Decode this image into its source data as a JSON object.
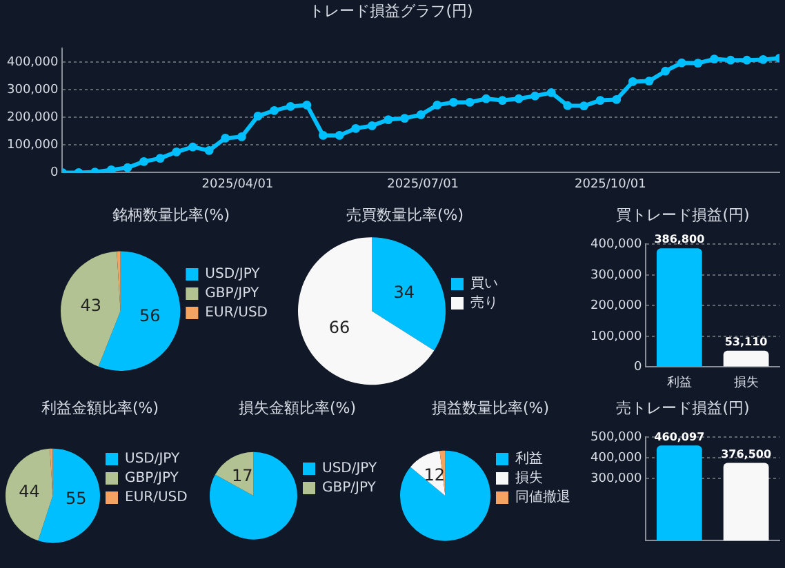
{
  "chart_data": [
    {
      "type": "line",
      "title": "トレード損益グラフ(円)",
      "x": [
        "2025-01-05",
        "2025-01-13",
        "2025-01-21",
        "2025-01-29",
        "2025-02-06",
        "2025-02-14",
        "2025-02-22",
        "2025-03-02",
        "2025-03-10",
        "2025-03-18",
        "2025-03-26",
        "2025-04-03",
        "2025-04-11",
        "2025-04-19",
        "2025-04-27",
        "2025-05-05",
        "2025-05-13",
        "2025-05-21",
        "2025-05-29",
        "2025-06-06",
        "2025-06-14",
        "2025-06-22",
        "2025-06-30",
        "2025-07-08",
        "2025-07-16",
        "2025-07-24",
        "2025-08-01",
        "2025-08-09",
        "2025-08-17",
        "2025-08-25",
        "2025-09-02",
        "2025-09-10",
        "2025-09-18",
        "2025-09-26",
        "2025-10-04",
        "2025-10-12",
        "2025-10-20",
        "2025-10-28",
        "2025-11-05",
        "2025-11-13",
        "2025-11-21",
        "2025-11-29",
        "2025-12-07",
        "2025-12-15",
        "2025-12-23"
      ],
      "series": [
        {
          "color": "#00bfff",
          "values": [
            0,
            0,
            2000,
            10000,
            18000,
            40000,
            52000,
            75000,
            93000,
            80000,
            125000,
            130000,
            205000,
            225000,
            240000,
            245000,
            135000,
            135000,
            160000,
            170000,
            192000,
            197000,
            210000,
            245000,
            255000,
            255000,
            268000,
            262000,
            268000,
            278000,
            290000,
            243000,
            242000,
            262000,
            265000,
            330000,
            332000,
            368000,
            398000,
            397000,
            412000,
            408000,
            408000,
            410000,
            415000
          ]
        }
      ],
      "xlim": [
        "2025-01-05",
        "2025-12-23"
      ],
      "xticks": [
        {
          "value": "2025-04-01",
          "label": "2025/04/01"
        },
        {
          "value": "2025-07-01",
          "label": "2025/07/01"
        },
        {
          "value": "2025-10-01",
          "label": "2025/10/01"
        }
      ],
      "ylim": [
        0,
        450000
      ],
      "yticks": [
        0,
        {
          "value": 100000,
          "label": "100,000"
        },
        {
          "value": 200000,
          "label": "200,000"
        },
        {
          "value": 300000,
          "label": "300,000"
        },
        {
          "value": 400000,
          "label": "400,000"
        }
      ],
      "grid": "y",
      "marker": "circle",
      "line_style": "solid"
    },
    {
      "type": "pie",
      "title": "銘柄数量比率(%)",
      "categories": [
        "USD/JPY",
        "GBP/JPY",
        "EUR/USD"
      ],
      "values": [
        56,
        43,
        1
      ],
      "colors": [
        "#00bfff",
        "#b3c293",
        "#f4a460"
      ],
      "value_labels": [
        "56",
        "43",
        null
      ],
      "legend": "right"
    },
    {
      "type": "pie",
      "title": "売買数量比率(%)",
      "categories": [
        "買い",
        "売り"
      ],
      "values": [
        34,
        66
      ],
      "colors": [
        "#00bfff",
        "#f8f8f8"
      ],
      "data_labels": true,
      "legend": "right"
    },
    {
      "type": "bar",
      "title": "買トレード損益(円)",
      "categories": [
        "利益",
        "損失"
      ],
      "values": [
        386800,
        53110
      ],
      "value_labels": [
        "386,800",
        "53,110"
      ],
      "colors": [
        "#00bfff",
        "#f8f8f8"
      ],
      "ylim": [
        0,
        400000
      ],
      "yticks": [
        0,
        {
          "value": 100000,
          "label": "100,000"
        },
        {
          "value": 200000,
          "label": "200,000"
        },
        {
          "value": 300000,
          "label": "300,000"
        },
        {
          "value": 400000,
          "label": "400,000"
        }
      ],
      "grid": "y"
    },
    {
      "type": "pie",
      "title": "利益金額比率(%)",
      "categories": [
        "USD/JPY",
        "GBP/JPY",
        "EUR/USD"
      ],
      "values": [
        55,
        44,
        1
      ],
      "colors": [
        "#00bfff",
        "#b3c293",
        "#f4a460"
      ],
      "value_labels": [
        "55",
        "44",
        null
      ],
      "legend": "right"
    },
    {
      "type": "pie",
      "title": "損失金額比率(%)",
      "categories": [
        "USD/JPY",
        "GBP/JPY"
      ],
      "values": [
        83,
        17
      ],
      "colors": [
        "#00bfff",
        "#b3c293"
      ],
      "value_labels": [
        null,
        "17"
      ],
      "legend": "right"
    },
    {
      "type": "pie",
      "title": "損益数量比率(%)",
      "categories": [
        "利益",
        "損失",
        "同値撤退"
      ],
      "values": [
        86,
        12,
        2
      ],
      "colors": [
        "#00bfff",
        "#f8f8f8",
        "#f4a460"
      ],
      "value_labels": [
        null,
        "12",
        null
      ],
      "legend": "right"
    },
    {
      "type": "bar",
      "title": "売トレード損益(円)",
      "categories": [
        null,
        null
      ],
      "values": [
        460097,
        376500
      ],
      "value_labels": [
        "460,097",
        "376,500"
      ],
      "colors": [
        "#00bfff",
        "#f8f8f8"
      ],
      "ylim": [
        0,
        500000
      ],
      "yticks": [
        {
          "value": 300000,
          "label": "300,000"
        },
        {
          "value": 400000,
          "label": "400,000"
        },
        {
          "value": 500000,
          "label": "500,000"
        }
      ],
      "grid": "y"
    }
  ]
}
